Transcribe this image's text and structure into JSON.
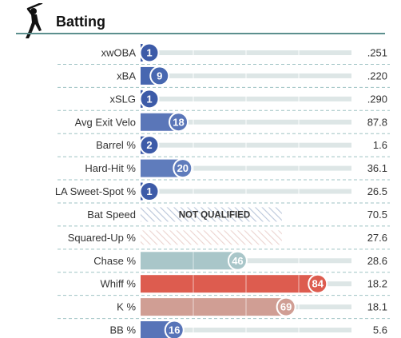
{
  "section": {
    "title": "Batting",
    "icon": "batter-icon"
  },
  "colors": {
    "accent_rule": "#5c8f8e",
    "track": "#dde6e6",
    "divider": "#9fc3c4",
    "not_qualified_hatch": "#b9c6da",
    "squared_up_hatch": "#ecd4d0"
  },
  "chart_data": {
    "type": "bar",
    "title": "Batting",
    "x_range": [
      0,
      100
    ],
    "rows": [
      {
        "metric": "xwOBA",
        "percentile": 1,
        "value": ".251",
        "color": "#3d5ba8",
        "qualified": true
      },
      {
        "metric": "xBA",
        "percentile": 9,
        "value": ".220",
        "color": "#4767b0",
        "qualified": true
      },
      {
        "metric": "xSLG",
        "percentile": 1,
        "value": ".290",
        "color": "#3d5ba8",
        "qualified": true
      },
      {
        "metric": "Avg Exit Velo",
        "percentile": 18,
        "value": "87.8",
        "color": "#5a76b8",
        "qualified": true
      },
      {
        "metric": "Barrel %",
        "percentile": 2,
        "value": "1.6",
        "color": "#3d5ba8",
        "qualified": true
      },
      {
        "metric": "Hard-Hit %",
        "percentile": 20,
        "value": "36.1",
        "color": "#5f7cbc",
        "qualified": true
      },
      {
        "metric": "LA Sweet-Spot %",
        "percentile": 1,
        "value": "26.5",
        "color": "#3d5ba8",
        "qualified": true
      },
      {
        "metric": "Bat Speed",
        "percentile": null,
        "value": "70.5",
        "qualified": false,
        "note": "NOT QUALIFIED",
        "hatch": "#b9c6da"
      },
      {
        "metric": "Squared-Up %",
        "percentile": null,
        "value": "27.6",
        "qualified": false,
        "note": "",
        "hatch": "#ecd4d0"
      },
      {
        "metric": "Chase %",
        "percentile": 46,
        "value": "28.6",
        "color": "#a9c6c9",
        "qualified": true
      },
      {
        "metric": "Whiff %",
        "percentile": 84,
        "value": "18.2",
        "color": "#dd5c4f",
        "qualified": true
      },
      {
        "metric": "K %",
        "percentile": 69,
        "value": "18.1",
        "color": "#d09e94",
        "qualified": true
      },
      {
        "metric": "BB %",
        "percentile": 16,
        "value": "5.6",
        "color": "#5874b8",
        "qualified": true
      }
    ]
  }
}
